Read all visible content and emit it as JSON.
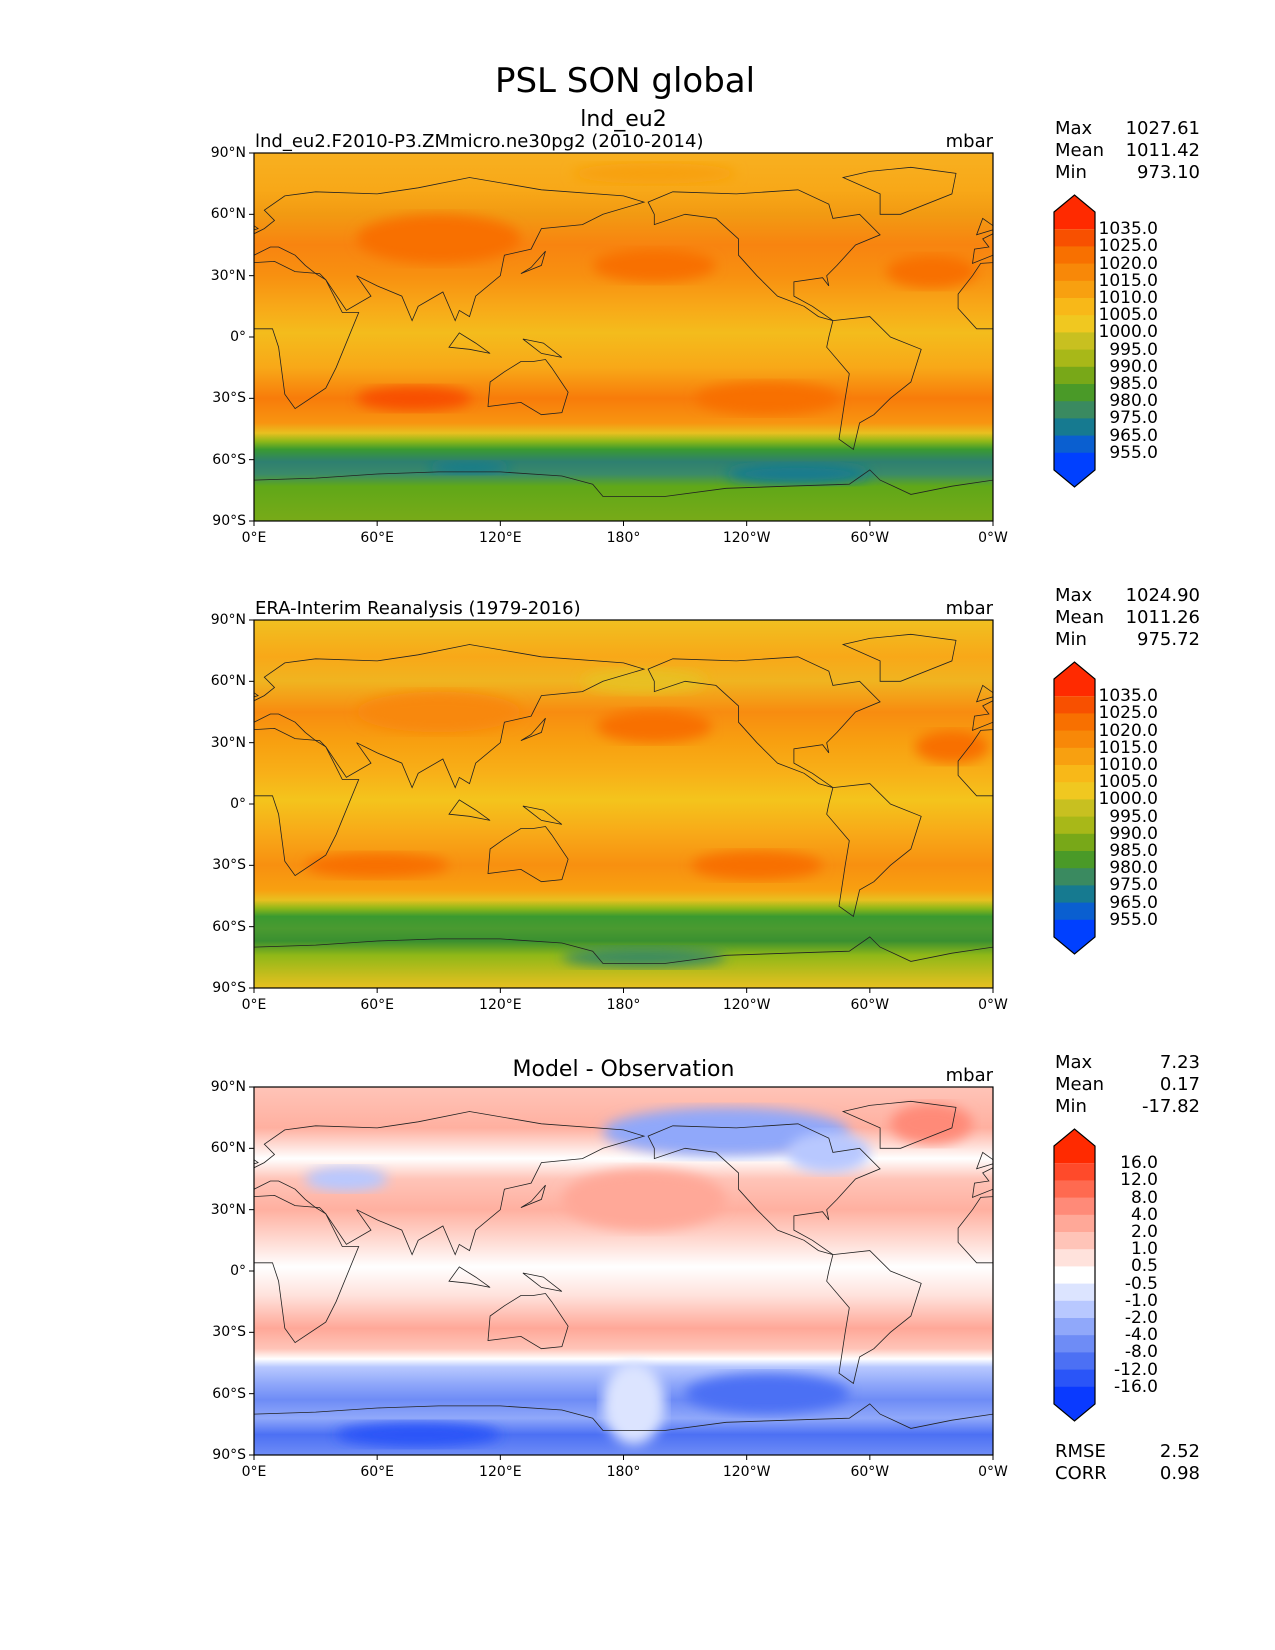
{
  "chart_data": [
    {
      "type": "heatmap",
      "title": "lnd_eu2",
      "left_title": "lnd_eu2.F2010-P3.ZMmicro.ne30pg2 (2010-2014)",
      "units": "mbar",
      "stats": {
        "Max": "1027.61",
        "Mean": "1011.42",
        "Min": "973.10"
      },
      "colorbar_labels": [
        "1035.0",
        "1025.0",
        "1020.0",
        "1015.0",
        "1010.0",
        "1005.0",
        "1000.0",
        "995.0",
        "990.0",
        "985.0",
        "980.0",
        "975.0",
        "965.0",
        "955.0"
      ]
    },
    {
      "type": "heatmap",
      "title": "",
      "left_title": "ERA-Interim Reanalysis (1979-2016)",
      "units": "mbar",
      "stats": {
        "Max": "1024.90",
        "Mean": "1011.26",
        "Min": "975.72"
      },
      "colorbar_labels": [
        "1035.0",
        "1025.0",
        "1020.0",
        "1015.0",
        "1010.0",
        "1005.0",
        "1000.0",
        "995.0",
        "990.0",
        "985.0",
        "980.0",
        "975.0",
        "965.0",
        "955.0"
      ]
    },
    {
      "type": "heatmap",
      "title": "Model - Observation",
      "left_title": "",
      "units": "mbar",
      "stats": {
        "Max": "7.23",
        "Mean": "0.17",
        "Min": "-17.82"
      },
      "colorbar_labels": [
        "16.0",
        "12.0",
        "8.0",
        "4.0",
        "2.0",
        "1.0",
        "0.5",
        "-0.5",
        "-1.0",
        "-2.0",
        "-4.0",
        "-8.0",
        "-12.0",
        "-16.0"
      ],
      "extra_stats": {
        "RMSE": "2.52",
        "CORR": "0.98"
      }
    }
  ],
  "figure_title": "PSL SON global",
  "lat_ticks": [
    "90°N",
    "60°N",
    "30°N",
    "0°",
    "30°S",
    "60°S",
    "90°S"
  ],
  "lon_ticks": [
    "0°E",
    "60°E",
    "120°E",
    "180°",
    "120°W",
    "60°W",
    "0°W"
  ],
  "colors": {
    "abs": [
      "#ff2a00",
      "#f85000",
      "#f87000",
      "#f88808",
      "#f8a010",
      "#f8b818",
      "#f0c820",
      "#c8c020",
      "#a8b818",
      "#78a818",
      "#4a9a28",
      "#3a8a60",
      "#167a90",
      "#0a5fd0",
      "#0040ff"
    ],
    "diff": [
      "#ff2a00",
      "#ff4a2a",
      "#ff6a50",
      "#ff8a78",
      "#ffa898",
      "#ffc4b8",
      "#ffe2dc",
      "#ffffff",
      "#dce4ff",
      "#b8c8ff",
      "#90a8fa",
      "#6e8cf6",
      "#4c70f4",
      "#2a55f8",
      "#0a3aff"
    ]
  }
}
